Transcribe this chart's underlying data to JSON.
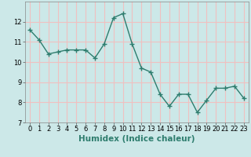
{
  "x": [
    0,
    1,
    2,
    3,
    4,
    5,
    6,
    7,
    8,
    9,
    10,
    11,
    12,
    13,
    14,
    15,
    16,
    17,
    18,
    19,
    20,
    21,
    22,
    23
  ],
  "y": [
    11.6,
    11.1,
    10.4,
    10.5,
    10.6,
    10.6,
    10.6,
    10.2,
    10.9,
    12.2,
    12.4,
    10.9,
    9.7,
    9.5,
    8.4,
    7.8,
    8.4,
    8.4,
    7.5,
    8.1,
    8.7,
    8.7,
    8.8,
    8.2
  ],
  "line_color": "#2e7d6e",
  "marker": "+",
  "marker_size": 4,
  "marker_lw": 1.0,
  "bg_color": "#cce8e8",
  "grid_color": "#f0c0c0",
  "xlabel": "Humidex (Indice chaleur)",
  "ylim": [
    7,
    13
  ],
  "xlim": [
    -0.5,
    23.5
  ],
  "yticks": [
    7,
    8,
    9,
    10,
    11,
    12
  ],
  "xticks": [
    0,
    1,
    2,
    3,
    4,
    5,
    6,
    7,
    8,
    9,
    10,
    11,
    12,
    13,
    14,
    15,
    16,
    17,
    18,
    19,
    20,
    21,
    22,
    23
  ],
  "tick_label_fontsize": 6,
  "xlabel_fontsize": 7.5
}
